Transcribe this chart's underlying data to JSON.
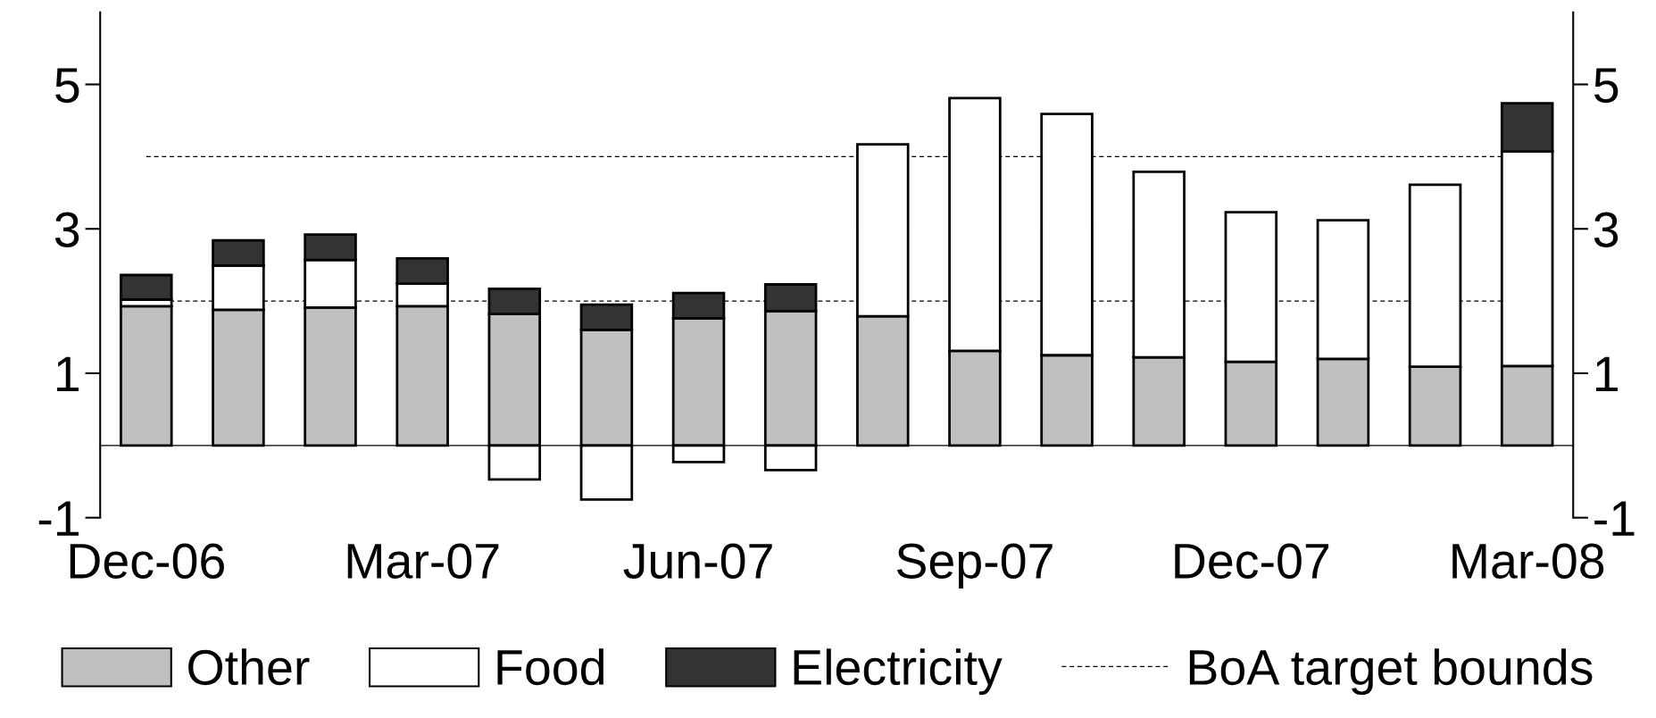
{
  "chart_data": {
    "type": "bar",
    "stacked": true,
    "categories": [
      "Dec-06",
      null,
      null,
      "Mar-07",
      null,
      null,
      "Jun-07",
      null,
      null,
      "Sep-07",
      null,
      null,
      "Dec-07",
      null,
      null,
      "Mar-08"
    ],
    "series": [
      {
        "name": "Other",
        "color": "#c0c0c0",
        "values": [
          1.93,
          1.88,
          1.91,
          1.93,
          1.82,
          1.6,
          1.76,
          1.86,
          1.79,
          1.31,
          1.25,
          1.22,
          1.16,
          1.2,
          1.09,
          1.1
        ]
      },
      {
        "name": "Food",
        "color": "#ffffff",
        "values": [
          0.09,
          0.61,
          0.66,
          0.31,
          -0.47,
          -0.75,
          -0.23,
          -0.34,
          2.38,
          3.5,
          3.34,
          2.57,
          2.07,
          1.92,
          2.52,
          2.97
        ]
      },
      {
        "name": "Electricity",
        "color": "#333333",
        "values": [
          0.34,
          0.35,
          0.35,
          0.35,
          0.35,
          0.35,
          0.35,
          0.37,
          null,
          null,
          null,
          null,
          null,
          null,
          null,
          0.67
        ]
      }
    ],
    "ylim": [
      -1,
      6
    ],
    "yticks": [
      -1,
      1,
      3,
      5
    ],
    "y2lim": [
      -1,
      6
    ],
    "y2ticks": [
      -1,
      1,
      3,
      5
    ],
    "ref_lines": [
      {
        "axis": "y",
        "value": 2,
        "label": "BoA target bounds",
        "color": "#000000",
        "line_style": "dashed"
      },
      {
        "axis": "y",
        "value": 4,
        "color": "#000000",
        "line_style": "dashed"
      }
    ],
    "grid": false,
    "legend": "bottom"
  }
}
